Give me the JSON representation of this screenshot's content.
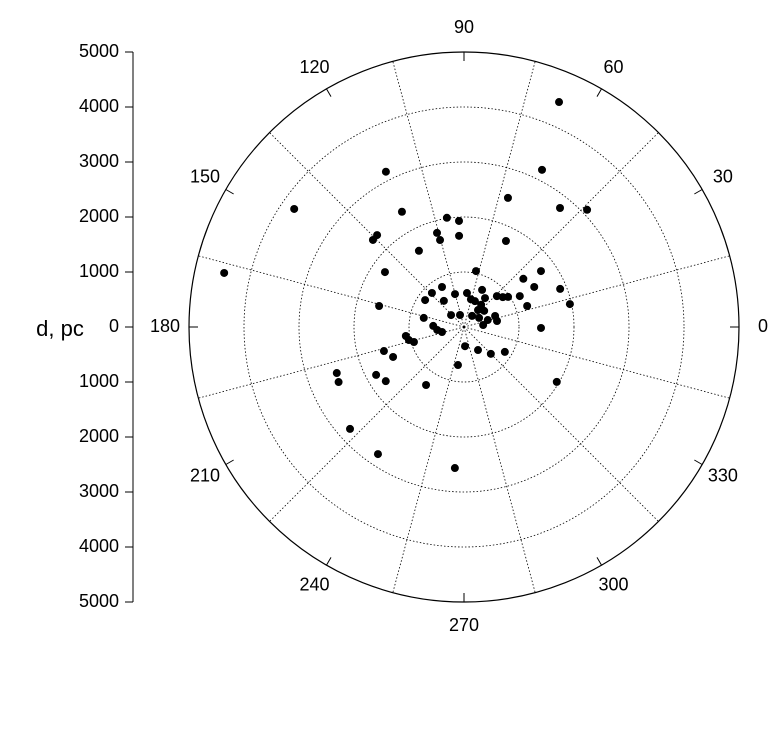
{
  "chart_data": {
    "type": "polar-scatter",
    "ylabel": "d, pc",
    "ylim": [
      -5000,
      5000
    ],
    "yticks": [
      {
        "value": -5000,
        "label": "5000"
      },
      {
        "value": -4000,
        "label": "4000"
      },
      {
        "value": -3000,
        "label": "3000"
      },
      {
        "value": -2000,
        "label": "2000"
      },
      {
        "value": -1000,
        "label": "1000"
      },
      0,
      1000,
      2000,
      3000,
      4000,
      5000
    ],
    "rlim": [
      0,
      5000
    ],
    "rticks": [
      1000,
      2000,
      3000,
      4000,
      5000
    ],
    "thetaticks": [
      0,
      30,
      60,
      90,
      120,
      150,
      180,
      210,
      240,
      270,
      300,
      330
    ],
    "theta_grid": [
      15,
      45,
      75,
      105,
      135,
      165,
      195,
      225,
      255,
      285,
      315,
      345
    ],
    "grid": true,
    "series": [
      {
        "color": "#000000",
        "theta": [
          67.1,
          63.6,
          51.1,
          43.6,
          71.2,
          64,
          36,
          39.1,
          29.7,
          21.6,
          12.2,
          29,
          18.4,
          359.3,
          329.4,
          77.9,
          116.7,
          145.2,
          167.3,
          118.3,
          133.4,
          136.3,
          120.6,
          98.9,
          92.7,
          106,
          105.4,
          93.1,
          145.2,
          166.1,
          118.8,
          133.3,
          145.3,
          127.6,
          105.3,
          85,
          76,
          67,
          64,
          54,
          52.3,
          43.2,
          37.6,
          34.3,
          50.5,
          38.7,
          16.3,
          31,
          19.5,
          10.3,
          6,
          167.3,
          178,
          186.3,
          192.8,
          137.3,
          108.4,
          188.8,
          193.3,
          196.7,
          196.7,
          202.9,
          199.9,
          203.7,
          208.6,
          214.7,
          236.8,
          221.8,
          235.9,
          266.3,
          261,
          273,
          301.3,
          315,
          328.6,
          54
        ],
        "r": [
          4440,
          3190,
          2780,
          3090,
          2480,
          1740,
          1730,
          1390,
          1470,
          1880,
          1970,
          1160,
          1210,
          1400,
          1960,
          1040,
          3160,
          3760,
          4470,
          2380,
          2300,
          2290,
          1610,
          2010,
          1930,
          1780,
          1640,
          1660,
          1750,
          1590,
          830,
          850,
          860,
          600,
          620,
          620,
          520,
          510,
          750,
          650,
          510,
          820,
          890,
          970,
          400,
          470,
          450,
          320,
          600,
          610,
          350,
          750,
          560,
          490,
          410,
          320,
          230,
          1070,
          1030,
          950,
          1520,
          1400,
          2460,
          2490,
          1820,
          1730,
          1260,
          2780,
          2790,
          2570,
          700,
          350,
          490,
          690,
          870,
          250
        ]
      }
    ]
  }
}
